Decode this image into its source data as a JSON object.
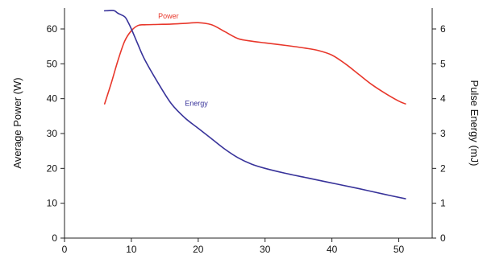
{
  "chart_data": {
    "type": "line",
    "title": "",
    "xlabel": "",
    "ylabel": "Average Power (W)",
    "y2label": "Pulse Energy (mJ)",
    "xlim": [
      0,
      55
    ],
    "ylim": [
      0,
      66
    ],
    "y2lim": [
      0,
      6.6
    ],
    "xticks": [
      0,
      10,
      20,
      30,
      40,
      50
    ],
    "yticks": [
      0,
      10,
      20,
      30,
      40,
      50,
      60
    ],
    "y2ticks": [
      0,
      1,
      2,
      3,
      4,
      5,
      6
    ],
    "grid": false,
    "legend": "inline labels near lines",
    "series": [
      {
        "name": "Power",
        "axis": "left",
        "color": "#e8372b",
        "label_at": [
          14,
          63
        ],
        "x": [
          6,
          7,
          8,
          9,
          10,
          11,
          12,
          14,
          16,
          18,
          20,
          22,
          24,
          26,
          28,
          30,
          33,
          36,
          38,
          40,
          42,
          44,
          46,
          48,
          50,
          51
        ],
        "y": [
          38.5,
          44.5,
          51,
          56.5,
          59.5,
          61,
          61.2,
          61.3,
          61.4,
          61.6,
          61.8,
          61.2,
          59.2,
          57.2,
          56.5,
          56,
          55.3,
          54.5,
          53.8,
          52.5,
          50,
          47,
          44,
          41.5,
          39.3,
          38.5
        ]
      },
      {
        "name": "Energy",
        "axis": "right",
        "color": "#38339a",
        "label_at": [
          18,
          3.8
        ],
        "x": [
          6,
          7,
          7.5,
          8,
          9,
          9.5,
          10,
          11,
          12,
          14,
          16,
          18,
          20,
          22,
          24,
          26,
          28,
          30,
          33,
          36,
          40,
          44,
          48,
          51
        ],
        "y": [
          6.52,
          6.53,
          6.52,
          6.45,
          6.35,
          6.2,
          6.0,
          5.55,
          5.12,
          4.45,
          3.85,
          3.45,
          3.15,
          2.85,
          2.55,
          2.3,
          2.12,
          2.0,
          1.86,
          1.74,
          1.58,
          1.42,
          1.25,
          1.13
        ]
      }
    ]
  }
}
